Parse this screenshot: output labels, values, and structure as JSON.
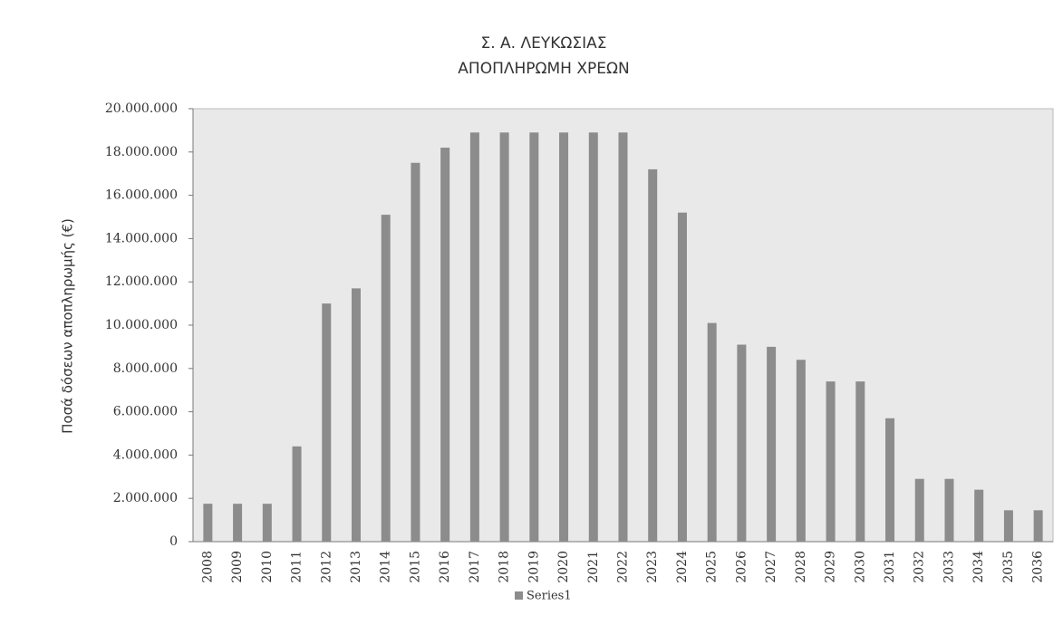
{
  "chart_data": {
    "type": "bar",
    "title": "Σ. Α. ΛΕΥΚΩΣΙΑΣ",
    "subtitle": "ΑΠΟΠΛΗΡΩΜΗ ΧΡΕΩΝ",
    "y_label": "Ποσά δόσεων αποπληρωμής (€)",
    "categories": [
      "2008",
      "2009",
      "2010",
      "2011",
      "2012",
      "2013",
      "2014",
      "2015",
      "2016",
      "2017",
      "2018",
      "2019",
      "2020",
      "2021",
      "2022",
      "2023",
      "2024",
      "2025",
      "2026",
      "2027",
      "2028",
      "2029",
      "2030",
      "2031",
      "2032",
      "2033",
      "2034",
      "2035",
      "2036"
    ],
    "series": [
      {
        "name": "Series1",
        "color": "#8c8c8c",
        "values": [
          1750000,
          1750000,
          1750000,
          4400000,
          11000000,
          11700000,
          15100000,
          17500000,
          18200000,
          18900000,
          18900000,
          18900000,
          18900000,
          18900000,
          18900000,
          17200000,
          15200000,
          10100000,
          9100000,
          9000000,
          8400000,
          7400000,
          7400000,
          5700000,
          2900000,
          2900000,
          2400000,
          1450000,
          1450000
        ]
      }
    ],
    "ylim": [
      0,
      20000000
    ],
    "yticks": [
      0,
      {
        "value": 2000000,
        "label": "2.000.000"
      },
      {
        "value": 4000000,
        "label": "4.000.000"
      },
      {
        "value": 6000000,
        "label": "6.000.000"
      },
      {
        "value": 8000000,
        "label": "8.000.000"
      },
      {
        "value": 10000000,
        "label": "10.000.000"
      },
      {
        "value": 12000000,
        "label": "12.000.000"
      },
      {
        "value": 14000000,
        "label": "14.000.000"
      },
      {
        "value": 16000000,
        "label": "16.000.000"
      },
      {
        "value": 18000000,
        "label": "18.000.000"
      },
      {
        "value": 20000000,
        "label": "20.000.000"
      }
    ],
    "grid": false,
    "legend": "bottom"
  }
}
